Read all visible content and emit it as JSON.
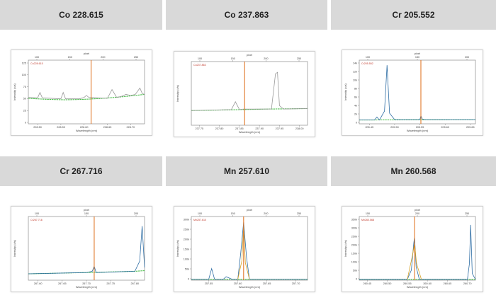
{
  "chart_data": [
    {
      "type": "line",
      "title": "Co 228.615",
      "peak_marker": "Co228.615",
      "xlabel": "Wavelength (nm)",
      "ylabel": "Intensity (c/s)",
      "x_ticks": [
        "228.50",
        "228.55",
        "228.60",
        "228.65",
        "228.70"
      ],
      "y_ticks": [
        "125",
        "100",
        "75",
        "50",
        "25",
        "0"
      ],
      "top_ticks": [
        "100",
        "150",
        "200",
        "250"
      ],
      "top_label": "pixel",
      "marker_x": 228.615,
      "xlim": [
        228.48,
        228.73
      ],
      "ylim": [
        0,
        130
      ],
      "series": [
        {
          "color": "#4fbf4f",
          "x": [
            228.48,
            228.52,
            228.56,
            228.6,
            228.64,
            228.68,
            228.73
          ],
          "y": [
            52,
            50,
            49,
            50,
            52,
            55,
            60
          ]
        },
        {
          "color": "#999999",
          "x": [
            228.48,
            228.5,
            228.505,
            228.51,
            228.55,
            228.555,
            228.56,
            228.59,
            228.6,
            228.605,
            228.61,
            228.65,
            228.66,
            228.67,
            228.68,
            228.69,
            228.7,
            228.71,
            228.72,
            228.725,
            228.73
          ],
          "y": [
            54,
            53,
            64,
            53,
            51,
            64,
            51,
            51,
            54,
            58,
            54,
            52,
            70,
            54,
            56,
            60,
            58,
            60,
            73,
            62,
            60
          ]
        }
      ]
    },
    {
      "type": "line",
      "title": "Co 237.863",
      "peak_marker": "Co237.863",
      "xlabel": "Wavelength (nm)",
      "ylabel": "Intensity (c/s)",
      "x_ticks": [
        "237.75",
        "237.80",
        "237.85",
        "237.90",
        "237.95",
        "238.00"
      ],
      "y_ticks": [],
      "top_ticks": [
        "100",
        "150",
        "200",
        "250"
      ],
      "top_label": "pixel",
      "marker_x": 237.863,
      "xlim": [
        237.73,
        238.02
      ],
      "ylim": [
        0,
        130
      ],
      "series": [
        {
          "color": "#4fbf4f",
          "x": [
            237.73,
            237.8,
            237.86,
            237.92,
            238.02
          ],
          "y": [
            30,
            31,
            32,
            33,
            34
          ]
        },
        {
          "color": "#999999",
          "x": [
            237.73,
            237.83,
            237.84,
            237.85,
            237.86,
            237.93,
            237.94,
            237.945,
            237.95,
            237.96,
            238.02
          ],
          "y": [
            30,
            32,
            48,
            32,
            33,
            33,
            105,
            108,
            40,
            33,
            34
          ]
        }
      ]
    },
    {
      "type": "line",
      "title": "Cr 205.552",
      "peak_marker": "Cr205.552",
      "xlabel": "Wavelength (nm)",
      "ylabel": "Intensity (c/s)",
      "x_ticks": [
        "205.45",
        "205.50",
        "205.55",
        "205.60",
        "205.65"
      ],
      "y_ticks": [
        "14k",
        "12k",
        "10k",
        "8k",
        "6k",
        "4k",
        "2k",
        "0"
      ],
      "top_ticks": [
        "100",
        "150",
        "200"
      ],
      "top_label": "pixel",
      "marker_x": 205.552,
      "xlim": [
        205.43,
        205.66
      ],
      "ylim": [
        0,
        15000
      ],
      "series": [
        {
          "color": "#4fbf4f",
          "x": [
            205.43,
            205.66
          ],
          "y": [
            900,
            1000
          ]
        },
        {
          "color": "#2e6da4",
          "x": [
            205.43,
            205.46,
            205.465,
            205.47,
            205.48,
            205.485,
            205.49,
            205.5,
            205.55,
            205.552,
            205.555,
            205.56,
            205.66
          ],
          "y": [
            900,
            900,
            1600,
            900,
            3000,
            13800,
            2500,
            1000,
            1000,
            1900,
            1100,
            1000,
            1000
          ]
        }
      ]
    },
    {
      "type": "line",
      "title": "Cr 267.716",
      "peak_marker": "Cr267.716",
      "xlabel": "Wavelength (nm)",
      "ylabel": "Intensity (c/s)",
      "x_ticks": [
        "267.60",
        "267.65",
        "267.70",
        "267.75",
        "267.80"
      ],
      "y_ticks": [],
      "top_ticks": [
        "100",
        "150",
        "200"
      ],
      "top_label": "pixel",
      "marker_x": 267.716,
      "xlim": [
        267.58,
        267.82
      ],
      "ylim": [
        0,
        100
      ],
      "series": [
        {
          "color": "#4fbf4f",
          "x": [
            267.58,
            267.7,
            267.8,
            267.82
          ],
          "y": [
            10,
            12,
            14,
            15
          ]
        },
        {
          "color": "#2e6da4",
          "x": [
            267.58,
            267.7,
            267.712,
            267.716,
            267.72,
            267.8,
            267.81,
            267.815,
            267.82
          ],
          "y": [
            10,
            12,
            14,
            22,
            12,
            14,
            30,
            85,
            20
          ]
        }
      ]
    },
    {
      "type": "line",
      "title": "Mn 257.610",
      "peak_marker": "Mn257.610",
      "xlabel": "Wavelength (nm)",
      "ylabel": "Intensity (c/s)",
      "x_ticks": [
        "257.55",
        "257.60",
        "257.65",
        "257.70"
      ],
      "y_ticks": [
        "300k",
        "250k",
        "200k",
        "150k",
        "100k",
        "50k",
        "0"
      ],
      "top_ticks": [
        "100",
        "150",
        "200",
        "250"
      ],
      "top_label": "pixel",
      "marker_x": 257.61,
      "xlim": [
        257.52,
        257.72
      ],
      "ylim": [
        0,
        330000
      ],
      "series": [
        {
          "color": "#4fbf4f",
          "x": [
            257.52,
            257.72
          ],
          "y": [
            5000,
            5000
          ]
        },
        {
          "color": "#2e6da4",
          "x": [
            257.52,
            257.55,
            257.555,
            257.56,
            257.575,
            257.58,
            257.59,
            257.6,
            257.605,
            257.61,
            257.615,
            257.62,
            257.72
          ],
          "y": [
            5000,
            5000,
            60000,
            5000,
            5000,
            18000,
            5000,
            5000,
            140000,
            300000,
            120000,
            5000,
            5000
          ]
        },
        {
          "color": "#d9a020",
          "x": [
            257.6,
            257.607,
            257.61,
            257.613,
            257.62
          ],
          "y": [
            5000,
            100000,
            280000,
            90000,
            5000
          ]
        }
      ]
    },
    {
      "type": "line",
      "title": "Mn 260.568",
      "peak_marker": "Mn260.568",
      "xlabel": "Wavelength (nm)",
      "ylabel": "Intensity (c/s)",
      "x_ticks": [
        "260.45",
        "260.50",
        "260.55",
        "260.60",
        "260.65",
        "260.70"
      ],
      "y_ticks": [
        "350k",
        "300k",
        "250k",
        "200k",
        "150k",
        "100k",
        "50k",
        "0"
      ],
      "top_ticks": [
        "150",
        "200",
        "250"
      ],
      "top_label": "pixel",
      "marker_x": 260.568,
      "xlim": [
        260.43,
        260.72
      ],
      "ylim": [
        0,
        380000
      ],
      "series": [
        {
          "color": "#4fbf4f",
          "x": [
            260.43,
            260.72
          ],
          "y": [
            5000,
            5000
          ]
        },
        {
          "color": "#2e6da4",
          "x": [
            260.43,
            260.55,
            260.56,
            260.566,
            260.568,
            260.572,
            260.58,
            260.7,
            260.705,
            260.708,
            260.712,
            260.72
          ],
          "y": [
            5000,
            5000,
            60000,
            220000,
            260000,
            80000,
            5000,
            5000,
            100000,
            330000,
            40000,
            5000
          ]
        },
        {
          "color": "#d9a020",
          "x": [
            260.55,
            260.563,
            260.568,
            260.573,
            260.585
          ],
          "y": [
            5000,
            150000,
            220000,
            100000,
            5000
          ]
        }
      ]
    }
  ]
}
